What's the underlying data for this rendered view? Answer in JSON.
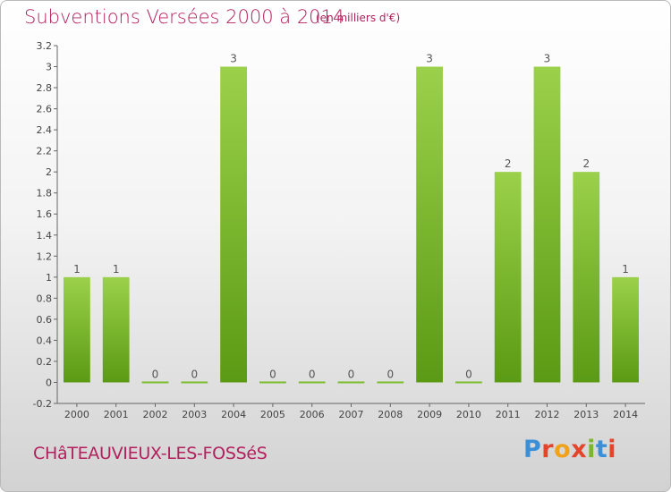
{
  "header": {
    "title": "Subventions Versées 2000 à 2014",
    "unit": "(en milliers d'€)"
  },
  "footer": {
    "commune": "CHâTEAUVIEUX-LES-FOSSéS",
    "logo": [
      "P",
      "r",
      "o",
      "x",
      "i",
      "t",
      "i"
    ],
    "logo_colors": [
      "#3a8fd6",
      "#e2452b",
      "#f0a21b",
      "#e2452b",
      "#7ab829",
      "#3a8fd6",
      "#e2452b"
    ]
  },
  "chart_data": {
    "type": "bar",
    "title": "Subventions Versées 2000 à 2014",
    "categories": [
      "2000",
      "2001",
      "2002",
      "2003",
      "2004",
      "2005",
      "2006",
      "2007",
      "2008",
      "2009",
      "2010",
      "2011",
      "2012",
      "2013",
      "2014"
    ],
    "values": [
      1,
      1,
      0,
      0,
      3,
      0,
      0,
      0,
      0,
      3,
      0,
      2,
      3,
      2,
      1
    ],
    "value_labels": [
      "1",
      "1",
      "0",
      "0",
      "3",
      "0",
      "0",
      "0",
      "0",
      "3",
      "0",
      "2",
      "3",
      "2",
      "1"
    ],
    "ylim": [
      -0.2,
      3.2
    ],
    "yticks": [
      -0.2,
      0,
      0.2,
      0.4,
      0.6,
      0.8,
      1,
      1.2,
      1.4,
      1.6,
      1.8,
      2,
      2.2,
      2.4,
      2.6,
      2.8,
      3,
      3.2
    ],
    "ytick_labels": [
      "-0.2",
      "0",
      "0.2",
      "0.4",
      "0.6",
      "0.8",
      "1",
      "1.2",
      "1.4",
      "1.6",
      "1.8",
      "2",
      "2.2",
      "2.4",
      "2.6",
      "2.8",
      "3",
      "3.2"
    ],
    "grid": false,
    "bar_color": "#7cbd2e"
  }
}
